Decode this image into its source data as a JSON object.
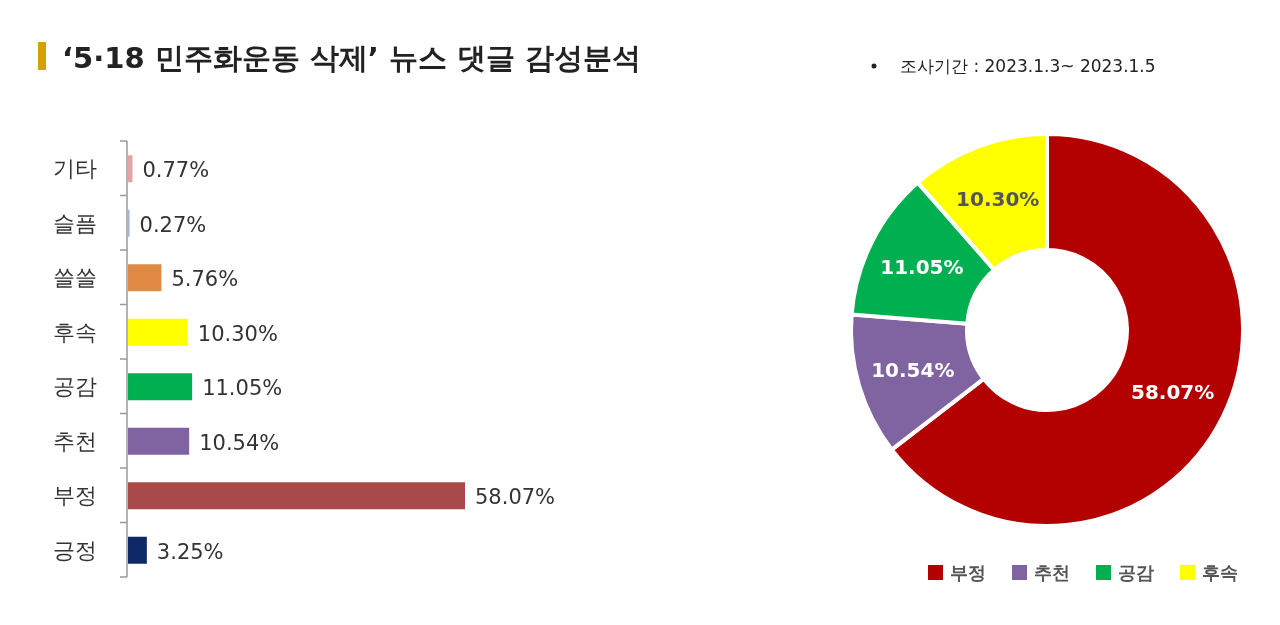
{
  "chart_data": [
    {
      "type": "bar",
      "orientation": "horizontal",
      "title": "‘5·18 민주화운동 삭제’ 뉴스 댓글 감성분석",
      "categories": [
        "기타",
        "슬픔",
        "쓸쓸",
        "후속",
        "공감",
        "추천",
        "부정",
        "긍정"
      ],
      "values": [
        0.77,
        0.27,
        5.76,
        10.3,
        11.05,
        10.54,
        58.07,
        3.25
      ],
      "value_labels": [
        "0.77%",
        "0.27%",
        "5.76%",
        "10.30%",
        "11.05%",
        "10.54%",
        "58.07%",
        "3.25%"
      ],
      "colors": [
        "#e6a3a3",
        "#a6b4d4",
        "#e08a44",
        "#ffff00",
        "#00b050",
        "#8064a2",
        "#a84a4a",
        "#0d2a66"
      ]
    },
    {
      "type": "donut",
      "annotations": [
        "조사기간 : 2023.1.3~ 2023.1.5"
      ],
      "categories": [
        "부정",
        "추천",
        "공감",
        "후속"
      ],
      "values": [
        58.07,
        10.54,
        11.05,
        10.3
      ],
      "value_labels": [
        "58.07%",
        "10.54%",
        "11.05%",
        "10.30%"
      ],
      "colors": [
        "#b30000",
        "#8064a2",
        "#00b050",
        "#ffff00"
      ],
      "legend": "bottom right"
    }
  ]
}
